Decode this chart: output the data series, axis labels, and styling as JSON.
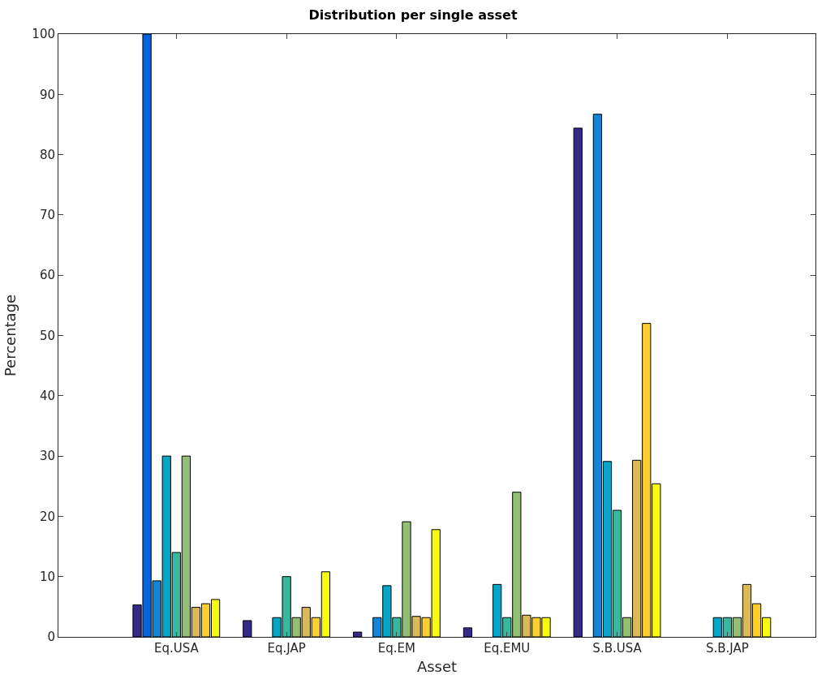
{
  "chart_data": {
    "type": "bar",
    "title": "Distribution per single asset",
    "xlabel": "Asset",
    "ylabel": "Percentage",
    "categories": [
      "Eq.USA",
      "Eq.JAP",
      "Eq.EM",
      "Eq.EMU",
      "S.B.USA",
      "S.B.JAP"
    ],
    "series": [
      {
        "color": "#352a87",
        "values": [
          5.3,
          2.7,
          0.8,
          1.5,
          84.4,
          null
        ]
      },
      {
        "color": "#0363e1",
        "values": [
          100,
          null,
          null,
          null,
          null,
          null
        ]
      },
      {
        "color": "#1485d4",
        "values": [
          9.3,
          null,
          3.2,
          null,
          86.7,
          null
        ]
      },
      {
        "color": "#06a7c6",
        "values": [
          30,
          3.2,
          8.5,
          8.7,
          29.1,
          3.2
        ]
      },
      {
        "color": "#38b99e",
        "values": [
          14,
          10,
          3.2,
          3.2,
          21,
          3.2
        ]
      },
      {
        "color": "#92bf73",
        "values": [
          30,
          3.2,
          19.1,
          24,
          3.2,
          3.2
        ]
      },
      {
        "color": "#d9ba56",
        "values": [
          4.9,
          4.9,
          3.4,
          3.6,
          29.3,
          8.7
        ]
      },
      {
        "color": "#fcce2e",
        "values": [
          5.5,
          3.2,
          3.2,
          3.2,
          52,
          5.5
        ]
      },
      {
        "color": "#f9fb0e",
        "values": [
          6.2,
          10.8,
          17.8,
          3.2,
          25.4,
          3.2
        ]
      }
    ],
    "ylim": [
      0,
      100
    ],
    "yticks": [
      0,
      10,
      20,
      30,
      40,
      50,
      60,
      70,
      80,
      90,
      100
    ],
    "legend": false
  }
}
